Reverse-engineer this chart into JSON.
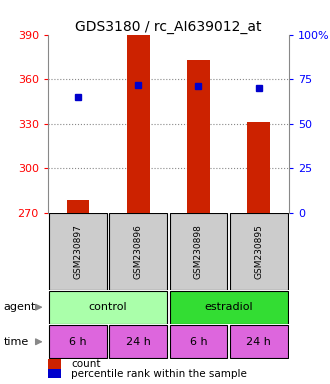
{
  "title": "GDS3180 / rc_AI639012_at",
  "samples": [
    "GSM230897",
    "GSM230896",
    "GSM230898",
    "GSM230895"
  ],
  "counts": [
    279,
    390,
    373,
    331
  ],
  "percentile_ranks": [
    65,
    72,
    71,
    70
  ],
  "ylim_left": [
    270,
    390
  ],
  "ylim_right": [
    0,
    100
  ],
  "yticks_left": [
    270,
    300,
    330,
    360,
    390
  ],
  "yticks_right": [
    0,
    25,
    50,
    75,
    100
  ],
  "ytick_labels_left": [
    "270",
    "300",
    "330",
    "360",
    "390"
  ],
  "ytick_labels_right": [
    "0",
    "25",
    "50",
    "75",
    "100%"
  ],
  "bar_color": "#cc2200",
  "dot_color": "#0000cc",
  "bar_width": 0.38,
  "agent_labels": [
    "control",
    "estradiol"
  ],
  "time_labels": [
    "6 h",
    "24 h",
    "6 h",
    "24 h"
  ],
  "agent_color_control": "#aaffaa",
  "agent_color_estradiol": "#33dd33",
  "time_color": "#dd66dd",
  "sample_box_color": "#cccccc",
  "legend_count_color": "#cc2200",
  "legend_pct_color": "#0000cc",
  "legend_count_label": "count",
  "legend_pct_label": "percentile rank within the sample",
  "grid_color": "#888888"
}
